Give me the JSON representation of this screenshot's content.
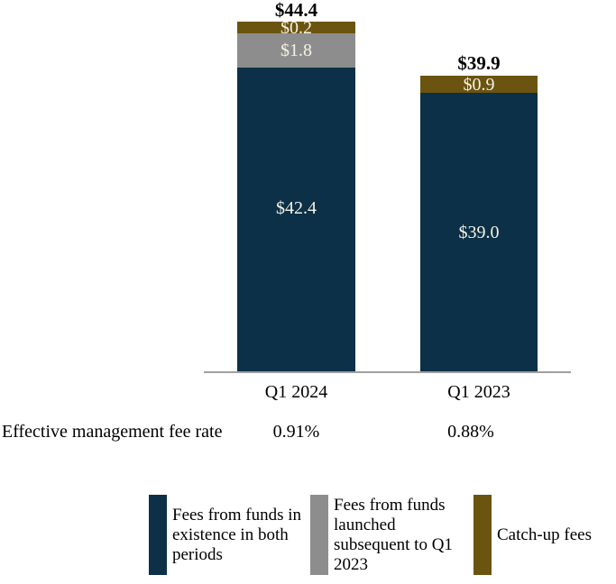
{
  "colors": {
    "navy": "#0b3047",
    "gray": "#8d8d8d",
    "gold": "#6b5410",
    "bar_label_text": "#f7f2e5",
    "total_label_text": "#000000",
    "axis_line": "#a0a0a0"
  },
  "chart_data": {
    "type": "bar",
    "stacked": true,
    "grid": false,
    "legend_position": "bottom",
    "categories": [
      "Q1 2024",
      "Q1 2023"
    ],
    "series": [
      {
        "name": "Fees from funds in existence in both periods",
        "color": "#0b3047",
        "values": [
          42.4,
          39.0
        ]
      },
      {
        "name": "Fees from funds launched subsequent to Q1 2023",
        "color": "#8d8d8d",
        "values": [
          1.8,
          0
        ]
      },
      {
        "name": "Catch-up fees",
        "color": "#6b5410",
        "values": [
          0.2,
          0.9
        ]
      }
    ],
    "totals": [
      44.4,
      39.9
    ],
    "bars": [
      {
        "category": "Q1 2024",
        "total_label": "$44.4",
        "segments": {
          "catchup": "$0.2",
          "launched": "$1.8",
          "existing": "$42.4"
        }
      },
      {
        "category": "Q1 2023",
        "total_label": "$39.9",
        "segments": {
          "catchup": "$0.9",
          "existing": "$39.0"
        }
      }
    ]
  },
  "fee_rate_row": {
    "label": "Effective management fee rate",
    "values": [
      "0.91%",
      "0.88%"
    ]
  },
  "legend": {
    "items": [
      {
        "label": "Fees from funds in existence in both periods",
        "color": "#0b3047"
      },
      {
        "label": "Fees from funds launched subsequent to Q1 2023",
        "color": "#8d8d8d"
      },
      {
        "label": "Catch-up fees",
        "color": "#6b5410"
      }
    ]
  }
}
